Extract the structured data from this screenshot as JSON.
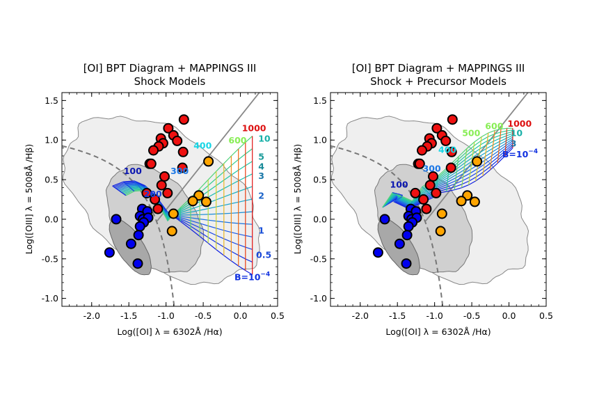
{
  "chart_data": [
    {
      "type": "scatter",
      "title_line1": "[OI] BPT Diagram  +  MAPPINGS III",
      "title_line2": "Shock Models",
      "xlabel": "Log([OI] λ = 6302Å /Hα)",
      "ylabel": "Log([OIII] λ = 5008Å /Hβ)",
      "xlim": [
        -2.4,
        0.5
      ],
      "ylim": [
        -1.1,
        1.6
      ],
      "xticks": [
        -2.0,
        -1.5,
        -1.0,
        -0.5,
        0.0,
        0.5
      ],
      "xtick_labels": [
        "-2.0",
        "-1.5",
        "-1.0",
        "-0.5",
        "0.0",
        "0.5"
      ],
      "yticks": [
        -1.0,
        -0.5,
        0.0,
        0.5,
        1.0,
        1.5
      ],
      "ytick_labels": [
        "-1.0",
        "-0.5",
        "0.0",
        "0.5",
        "1.0",
        "1.5"
      ],
      "series": [
        {
          "name": "red",
          "color": "#ee1111",
          "points": [
            [
              -0.76,
              1.26
            ],
            [
              -0.97,
              1.15
            ],
            [
              -0.9,
              1.06
            ],
            [
              -1.07,
              1.02
            ],
            [
              -0.85,
              0.99
            ],
            [
              -1.04,
              0.96
            ],
            [
              -1.1,
              0.92
            ],
            [
              -0.77,
              0.85
            ],
            [
              -1.17,
              0.87
            ],
            [
              -1.22,
              0.7
            ],
            [
              -1.2,
              0.7
            ],
            [
              -0.78,
              0.65
            ],
            [
              -1.02,
              0.54
            ],
            [
              -1.06,
              0.43
            ],
            [
              -1.26,
              0.33
            ],
            [
              -0.98,
              0.33
            ],
            [
              -1.15,
              0.25
            ],
            [
              -1.11,
              0.13
            ]
          ]
        },
        {
          "name": "orange",
          "color": "#ffa500",
          "points": [
            [
              -0.43,
              0.73
            ],
            [
              -0.56,
              0.3
            ],
            [
              -0.64,
              0.23
            ],
            [
              -0.46,
              0.22
            ],
            [
              -0.9,
              0.07
            ],
            [
              -0.92,
              -0.15
            ]
          ]
        },
        {
          "name": "blue",
          "color": "#0000ee",
          "points": [
            [
              -1.32,
              0.13
            ],
            [
              -1.25,
              0.1
            ],
            [
              -1.35,
              0.04
            ],
            [
              -1.31,
              0.0
            ],
            [
              -1.24,
              0.02
            ],
            [
              -1.3,
              -0.04
            ],
            [
              -1.35,
              -0.09
            ],
            [
              -1.67,
              0.0
            ],
            [
              -1.37,
              -0.2
            ],
            [
              -1.47,
              -0.31
            ],
            [
              -1.76,
              -0.42
            ],
            [
              -1.38,
              -0.56
            ]
          ]
        }
      ],
      "model_labels": [
        {
          "text": "100",
          "x": -1.57,
          "y": 0.57,
          "color": "#0a16b0"
        },
        {
          "text": "200",
          "x": -1.3,
          "y": 0.28,
          "color": "#1840d8"
        },
        {
          "text": "300",
          "x": -0.94,
          "y": 0.57,
          "color": "#1e78e6"
        },
        {
          "text": "400",
          "x": -0.63,
          "y": 0.89,
          "color": "#18d6e6"
        },
        {
          "text": "600",
          "x": -0.16,
          "y": 0.96,
          "color": "#88ee55"
        },
        {
          "text": "1000",
          "x": 0.02,
          "y": 1.11,
          "color": "#dd1111"
        },
        {
          "text": "10",
          "x": 0.24,
          "y": 0.98,
          "color": "#18b0a8"
        },
        {
          "text": "5",
          "x": 0.24,
          "y": 0.75,
          "color": "#189a98"
        },
        {
          "text": "4",
          "x": 0.24,
          "y": 0.63,
          "color": "#188a98"
        },
        {
          "text": "3",
          "x": 0.24,
          "y": 0.51,
          "color": "#1a78a8"
        },
        {
          "text": "2",
          "x": 0.24,
          "y": 0.26,
          "color": "#1a62c8"
        },
        {
          "text": "1",
          "x": 0.24,
          "y": -0.18,
          "color": "#1a50d8"
        },
        {
          "text": "0.5",
          "x": 0.21,
          "y": -0.49,
          "color": "#1a48d8"
        },
        {
          "text": "B=10",
          "x": -0.08,
          "y": -0.77,
          "color": "#1030e0"
        }
      ]
    },
    {
      "type": "scatter",
      "title_line1": "[OI] BPT Diagram  +  MAPPINGS III",
      "title_line2": "Shock + Precursor Models",
      "xlabel": "Log([OI] λ = 6302Å /Hα)",
      "ylabel": "Log([OIII] λ = 5008Å /Hβ)",
      "xlim": [
        -2.4,
        0.5
      ],
      "ylim": [
        -1.1,
        1.6
      ],
      "xticks": [
        -2.0,
        -1.5,
        -1.0,
        -0.5,
        0.0,
        0.5
      ],
      "xtick_labels": [
        "-2.0",
        "-1.5",
        "-1.0",
        "-0.5",
        "0.0",
        "0.5"
      ],
      "yticks": [
        -1.0,
        -0.5,
        0.0,
        0.5,
        1.0,
        1.5
      ],
      "ytick_labels": [
        "-1.0",
        "-0.5",
        "0.0",
        "0.5",
        "1.0",
        "1.5"
      ],
      "series": [
        {
          "name": "red",
          "color": "#ee1111",
          "points": [
            [
              -0.76,
              1.26
            ],
            [
              -0.97,
              1.15
            ],
            [
              -0.9,
              1.06
            ],
            [
              -1.07,
              1.02
            ],
            [
              -0.85,
              0.99
            ],
            [
              -1.04,
              0.96
            ],
            [
              -1.1,
              0.92
            ],
            [
              -0.77,
              0.85
            ],
            [
              -1.17,
              0.87
            ],
            [
              -1.22,
              0.7
            ],
            [
              -1.2,
              0.7
            ],
            [
              -0.78,
              0.65
            ],
            [
              -1.02,
              0.54
            ],
            [
              -1.06,
              0.43
            ],
            [
              -1.26,
              0.33
            ],
            [
              -0.98,
              0.33
            ],
            [
              -1.15,
              0.25
            ],
            [
              -1.11,
              0.13
            ]
          ]
        },
        {
          "name": "orange",
          "color": "#ffa500",
          "points": [
            [
              -0.43,
              0.73
            ],
            [
              -0.56,
              0.3
            ],
            [
              -0.64,
              0.23
            ],
            [
              -0.46,
              0.22
            ],
            [
              -0.9,
              0.07
            ],
            [
              -0.92,
              -0.15
            ]
          ]
        },
        {
          "name": "blue",
          "color": "#0000ee",
          "points": [
            [
              -1.32,
              0.13
            ],
            [
              -1.25,
              0.1
            ],
            [
              -1.35,
              0.04
            ],
            [
              -1.31,
              0.0
            ],
            [
              -1.24,
              0.02
            ],
            [
              -1.3,
              -0.04
            ],
            [
              -1.35,
              -0.09
            ],
            [
              -1.67,
              0.0
            ],
            [
              -1.37,
              -0.2
            ],
            [
              -1.47,
              -0.31
            ],
            [
              -1.76,
              -0.42
            ],
            [
              -1.38,
              -0.56
            ]
          ]
        }
      ],
      "model_labels": [
        {
          "text": "100",
          "x": -1.6,
          "y": 0.4,
          "color": "#0a16b0"
        },
        {
          "text": "300",
          "x": -1.16,
          "y": 0.6,
          "color": "#1e78e6"
        },
        {
          "text": "400",
          "x": -0.95,
          "y": 0.84,
          "color": "#18d6e6"
        },
        {
          "text": "500",
          "x": -0.63,
          "y": 1.05,
          "color": "#88ee55"
        },
        {
          "text": "600",
          "x": -0.32,
          "y": 1.14,
          "color": "#88ee55"
        },
        {
          "text": "1000",
          "x": -0.02,
          "y": 1.17,
          "color": "#dd1111"
        },
        {
          "text": "10",
          "x": 0.02,
          "y": 1.05,
          "color": "#18b0a8"
        },
        {
          "text": "3",
          "x": 0.02,
          "y": 0.92,
          "color": "#1a78a8"
        },
        {
          "text": "B=10",
          "x": -0.09,
          "y": 0.78,
          "color": "#1030e0"
        }
      ]
    }
  ],
  "exponent": "−4"
}
